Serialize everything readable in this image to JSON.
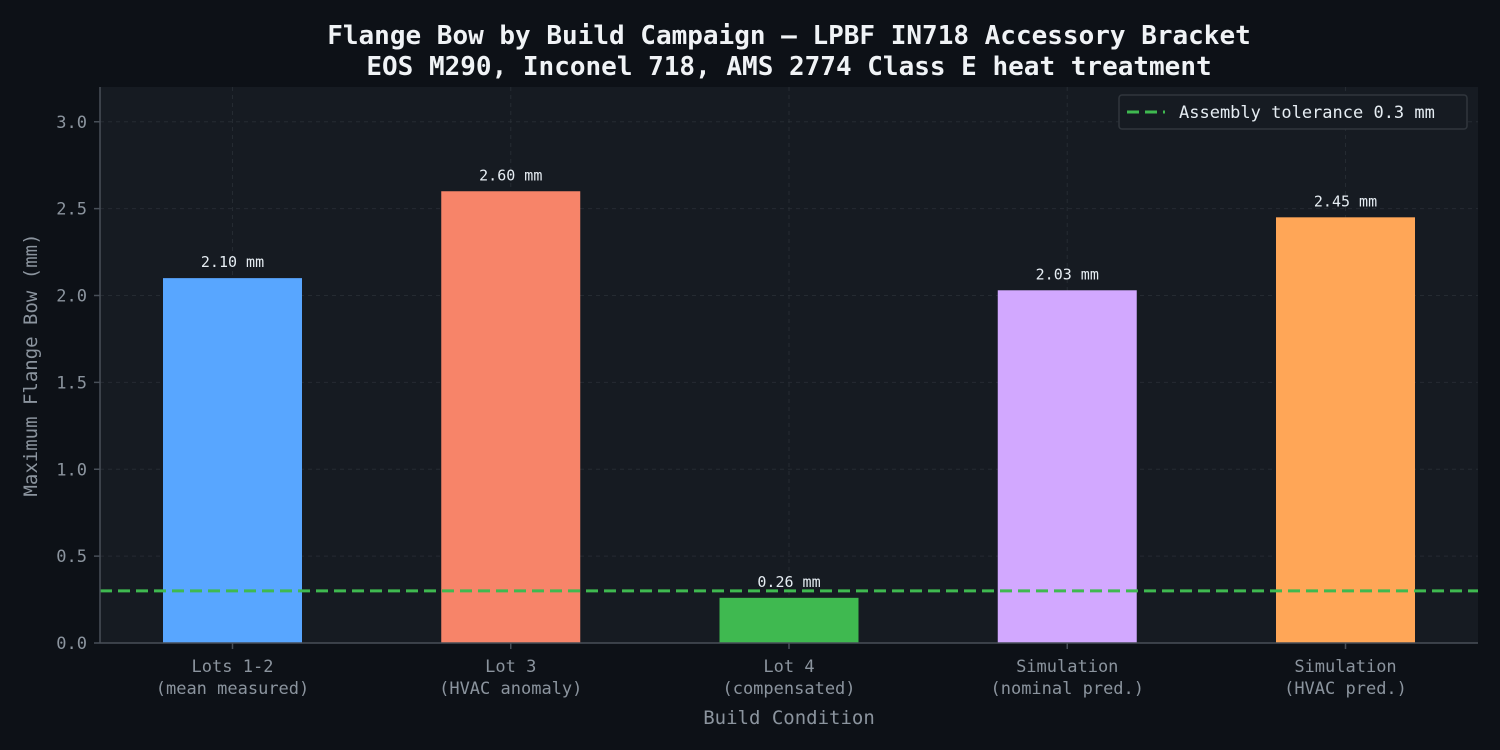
{
  "chart_data": {
    "type": "bar",
    "title": "Flange Bow by Build Campaign — LPBF IN718 Accessory Bracket",
    "subtitle": "EOS M290, Inconel 718, AMS 2774 Class E heat treatment",
    "xlabel": "Build Condition",
    "ylabel": "Maximum Flange Bow (mm)",
    "categories": [
      [
        "Lots 1-2",
        "(mean measured)"
      ],
      [
        "Lot 3",
        "(HVAC anomaly)"
      ],
      [
        "Lot 4",
        "(compensated)"
      ],
      [
        "Simulation",
        "(nominal pred.)"
      ],
      [
        "Simulation",
        "(HVAC pred.)"
      ]
    ],
    "values": [
      2.1,
      2.6,
      0.26,
      2.03,
      2.45
    ],
    "value_labels": [
      "2.10 mm",
      "2.60 mm",
      "0.26 mm",
      "2.03 mm",
      "2.45 mm"
    ],
    "bar_colors": [
      "#58a6ff",
      "#f78469",
      "#3fb950",
      "#d2a8ff",
      "#ffa657"
    ],
    "ylim": [
      0,
      3.2
    ],
    "yticks": [
      0.0,
      0.5,
      1.0,
      1.5,
      2.0,
      2.5,
      3.0
    ],
    "ytick_labels": [
      "0.0",
      "0.5",
      "1.0",
      "1.5",
      "2.0",
      "2.5",
      "3.0"
    ],
    "reference_line": {
      "value": 0.3,
      "label": "Assembly tolerance 0.3 mm",
      "color": "#3fb950",
      "style": "dashed"
    },
    "legend_position": "top-right",
    "grid": true
  },
  "colors": {
    "figure_bg": "#0d1117",
    "plot_bg": "#161b22",
    "grid": "#30363d",
    "axis": "#484f58",
    "text": "#e6edf3",
    "muted_text": "#8b949e"
  }
}
